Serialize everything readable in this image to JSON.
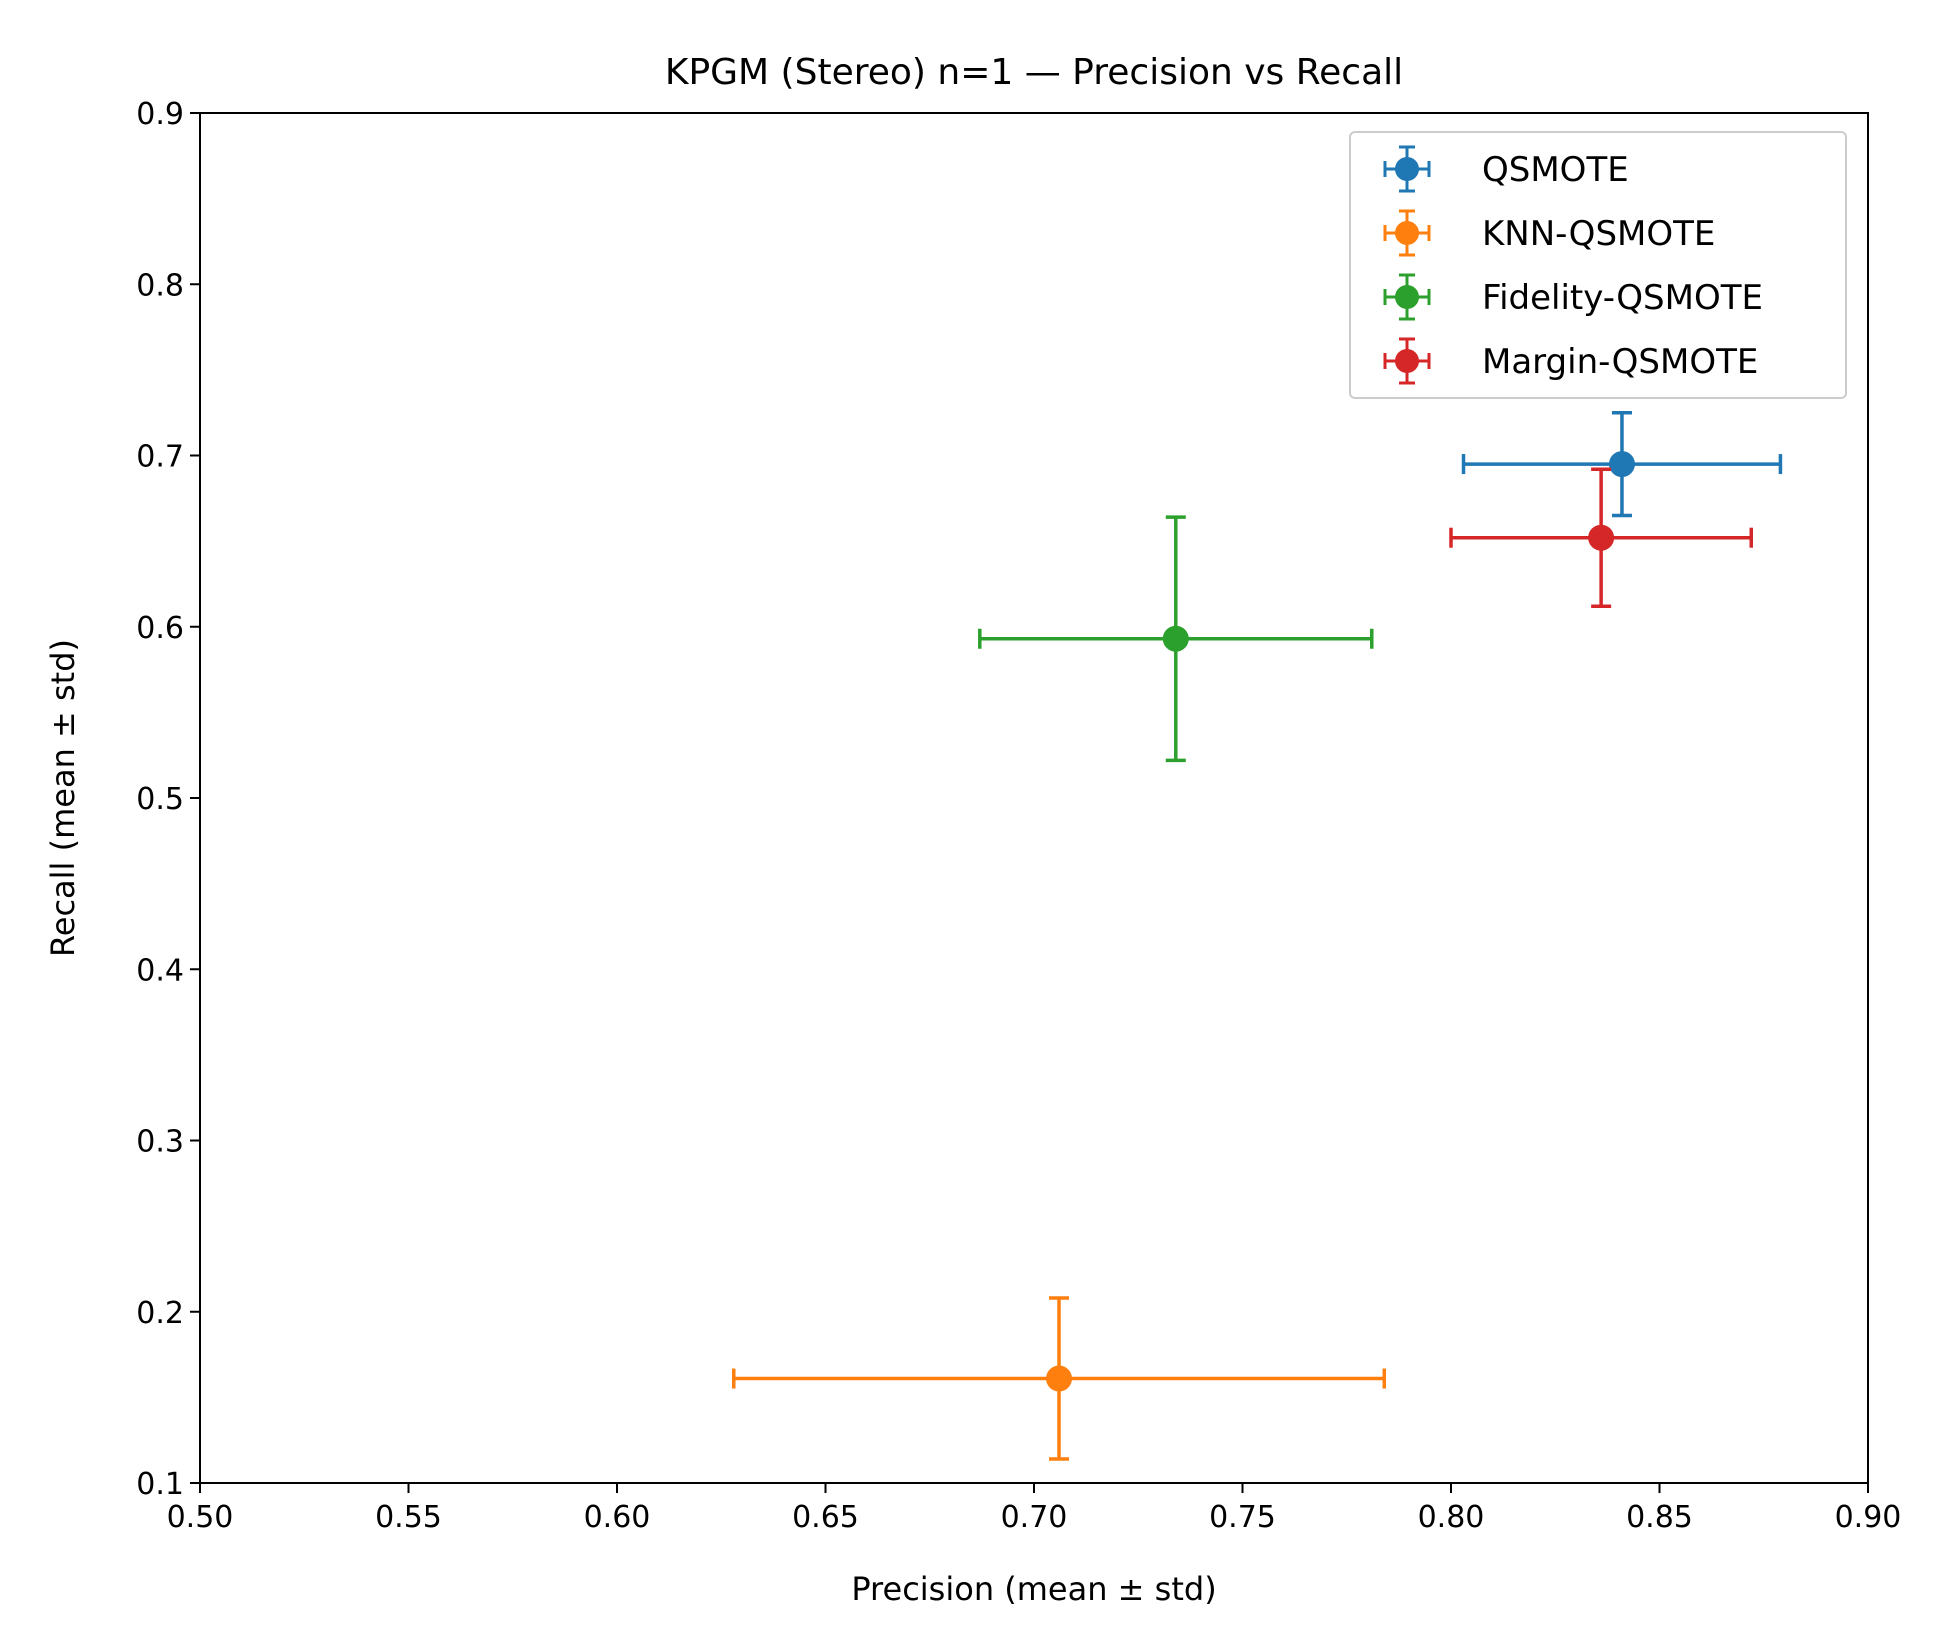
{
  "chart_data": {
    "type": "scatter",
    "title": "KPGM (Stereo) n=1 — Precision vs Recall",
    "xlabel": "Precision (mean ± std)",
    "ylabel": "Recall (mean ± std)",
    "xlim": [
      0.5,
      0.9
    ],
    "ylim": [
      0.1,
      0.9
    ],
    "x_ticks": [
      "0.50",
      "0.55",
      "0.60",
      "0.65",
      "0.70",
      "0.75",
      "0.80",
      "0.85",
      "0.90"
    ],
    "y_ticks": [
      "0.1",
      "0.2",
      "0.3",
      "0.4",
      "0.5",
      "0.6",
      "0.7",
      "0.8",
      "0.9"
    ],
    "grid": false,
    "legend_position": "top-right",
    "series": [
      {
        "name": "QSMOTE",
        "color": "#1f77b4",
        "x": 0.841,
        "y": 0.695,
        "x_err": 0.038,
        "y_err": 0.03
      },
      {
        "name": "KNN-QSMOTE",
        "color": "#ff7f0e",
        "x": 0.706,
        "y": 0.161,
        "x_err": 0.078,
        "y_err": 0.047
      },
      {
        "name": "Fidelity-QSMOTE",
        "color": "#2ca02c",
        "x": 0.734,
        "y": 0.593,
        "x_err": 0.047,
        "y_err": 0.071
      },
      {
        "name": "Margin-QSMOTE",
        "color": "#d62728",
        "x": 0.836,
        "y": 0.652,
        "x_err": 0.036,
        "y_err": 0.04
      }
    ]
  }
}
